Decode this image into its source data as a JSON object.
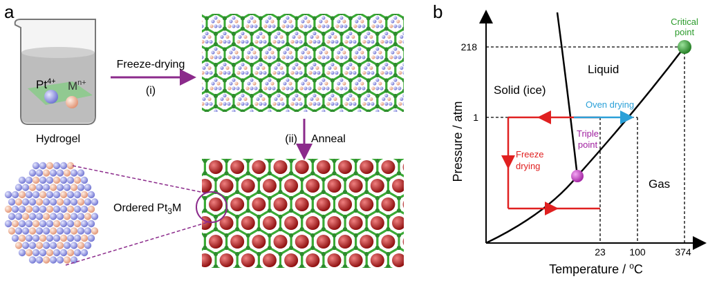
{
  "panel_a": {
    "label": "a",
    "beaker": {
      "label": "Hydrogel",
      "ion1": {
        "base": "Pt",
        "sup": "4+"
      },
      "ion2": {
        "base": "M",
        "sup": "n+"
      }
    },
    "step1": {
      "label": "Freeze-drying",
      "number": "(i)"
    },
    "step2": {
      "number": "(ii)",
      "label": "Anneal"
    },
    "product": {
      "base": "Ordered Pt",
      "sub": "3",
      "tail": "M"
    }
  },
  "panel_b": {
    "label": "b",
    "y_axis": {
      "title": "Pressure / atm",
      "ticks": [
        "218",
        "1"
      ]
    },
    "x_axis": {
      "title_base": "Temperature / ",
      "title_sup": "o",
      "title_tail": "C",
      "ticks": [
        "23",
        "100",
        "374"
      ]
    },
    "regions": {
      "liquid": "Liquid",
      "solid": "Solid (ice)",
      "gas": "Gas"
    },
    "points": {
      "critical": [
        "Critical",
        "point"
      ],
      "triple": [
        "Triple",
        "point"
      ]
    },
    "paths": {
      "oven": "Oven drying",
      "freeze": [
        "Freeze",
        "drying"
      ]
    }
  }
}
